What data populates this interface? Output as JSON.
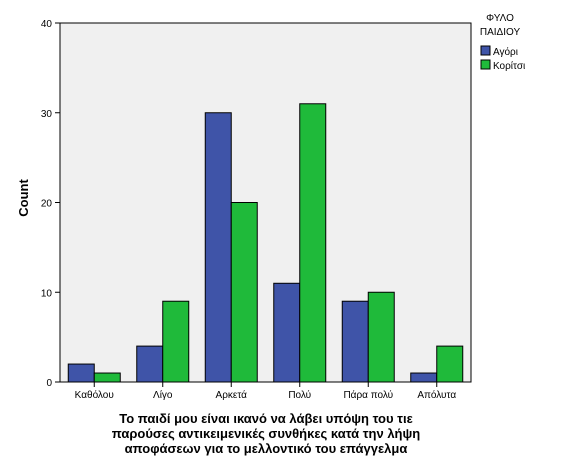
{
  "chart_data": {
    "type": "bar",
    "categories": [
      "Καθόλου",
      "Λίγο",
      "Αρκετά",
      "Πολύ",
      "Πάρα πολύ",
      "Απόλυτα"
    ],
    "series": [
      {
        "name": "Αγόρι",
        "values": [
          2,
          4,
          30,
          11,
          9,
          1
        ],
        "color": "#3f54a8"
      },
      {
        "name": "Κορίτσι",
        "values": [
          1,
          9,
          20,
          31,
          10,
          4
        ],
        "color": "#1fba3a"
      }
    ],
    "ylabel": "Count",
    "xlabel_lines": [
      "Το παιδί μου είναι ικανό να λάβει υπόψη του τιε",
      "παρούσες αντικειμενικές συνθήκες κατά την λήψη",
      "αποφάσεων για το μελλοντικό του επάγγελμα"
    ],
    "ylim": [
      0,
      40
    ],
    "yticks": [
      0,
      10,
      20,
      30,
      40
    ],
    "legend": {
      "title_lines": [
        "ΦΥΛΟ",
        "ΠΑΙΔΙΟΥ"
      ],
      "position": "right"
    },
    "plot_background": "#f0f0f0",
    "grid": false
  }
}
